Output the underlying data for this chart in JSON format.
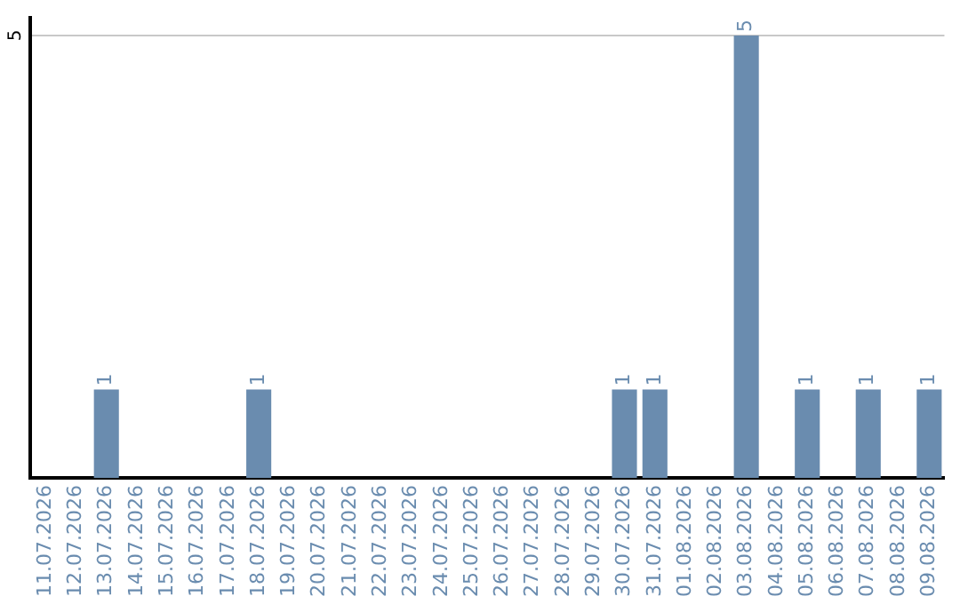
{
  "chart_data": {
    "type": "bar",
    "categories": [
      "11.07.2026",
      "12.07.2026",
      "13.07.2026",
      "14.07.2026",
      "15.07.2026",
      "16.07.2026",
      "17.07.2026",
      "18.07.2026",
      "19.07.2026",
      "20.07.2026",
      "21.07.2026",
      "22.07.2026",
      "23.07.2026",
      "24.07.2026",
      "25.07.2026",
      "26.07.2026",
      "27.07.2026",
      "28.07.2026",
      "29.07.2026",
      "30.07.2026",
      "31.07.2026",
      "01.08.2026",
      "02.08.2026",
      "03.08.2026",
      "04.08.2026",
      "05.08.2026",
      "06.08.2026",
      "07.08.2026",
      "08.08.2026",
      "09.08.2026"
    ],
    "values": [
      0,
      0,
      1,
      0,
      0,
      0,
      0,
      1,
      0,
      0,
      0,
      0,
      0,
      0,
      0,
      0,
      0,
      0,
      0,
      1,
      1,
      0,
      0,
      5,
      0,
      1,
      0,
      1,
      0,
      1
    ],
    "value_labels": [
      null,
      null,
      "1",
      null,
      null,
      null,
      null,
      "1",
      null,
      null,
      null,
      null,
      null,
      null,
      null,
      null,
      null,
      null,
      null,
      "1",
      "1",
      null,
      null,
      "5",
      null,
      "1",
      null,
      "1",
      null,
      "1"
    ],
    "color": "#6a8caf",
    "ylim": [
      0,
      5.2
    ],
    "yticks": [
      5
    ],
    "grid": "y",
    "legend": false
  }
}
